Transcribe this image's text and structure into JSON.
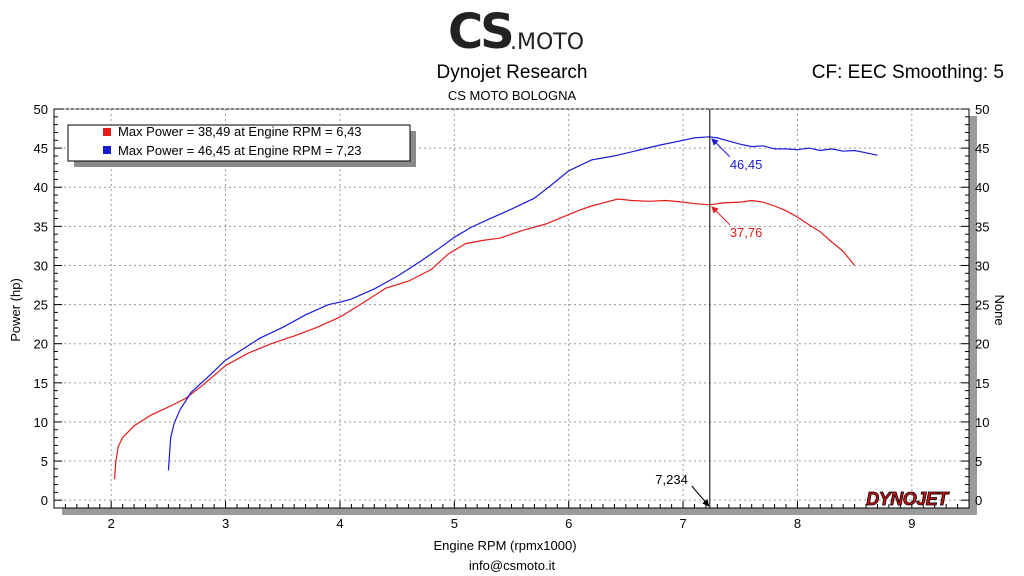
{
  "header": {
    "logo_cs": "CS",
    "logo_moto": ".MOTO",
    "title": "Dynojet Research",
    "subtitle": "CS MOTO BOLOGNA",
    "correction": "CF: EEC Smoothing: 5"
  },
  "footer": {
    "email": "info@csmoto.it"
  },
  "brand": {
    "dynojet_text": "DYNOJET"
  },
  "colors": {
    "red": "#e31b1b",
    "blue": "#1b1bd6",
    "grid": "#9a9a9a"
  },
  "chart_data": {
    "type": "line",
    "xlabel": "Engine RPM (rpmx1000)",
    "ylabel": "Power (hp)",
    "y2label": "None",
    "xlim": [
      1.5,
      9.5
    ],
    "ylim": [
      -1,
      50
    ],
    "x_ticks": [
      "2",
      "3",
      "4",
      "5",
      "6",
      "7",
      "8",
      "9"
    ],
    "y_ticks": [
      "0",
      "5",
      "10",
      "15",
      "20",
      "25",
      "30",
      "35",
      "40",
      "45",
      "50"
    ],
    "grid": true,
    "legend": {
      "position": "top-left",
      "entries": [
        "Max Power = 38,49 at Engine RPM = 6,43",
        "Max Power = 46,45 at Engine RPM = 7,23"
      ]
    },
    "cursor": {
      "x": 7.234,
      "label": "7,234"
    },
    "annotations": [
      {
        "series": "red",
        "value": "37,76",
        "x": 7.234,
        "y": 37.76
      },
      {
        "series": "blue",
        "value": "46,45",
        "x": 7.234,
        "y": 46.45
      }
    ],
    "series": [
      {
        "color": "red",
        "x": [
          2.03,
          2.04,
          2.06,
          2.1,
          2.2,
          2.35,
          2.5,
          2.65,
          2.8,
          3.0,
          3.2,
          3.4,
          3.6,
          3.8,
          4.0,
          4.2,
          4.4,
          4.6,
          4.8,
          4.95,
          5.1,
          5.25,
          5.4,
          5.6,
          5.8,
          6.0,
          6.1,
          6.2,
          6.3,
          6.43,
          6.55,
          6.7,
          6.85,
          7.0,
          7.1,
          7.234,
          7.35,
          7.5,
          7.6,
          7.7,
          7.8,
          7.9,
          8.0,
          8.1,
          8.2,
          8.3,
          8.4,
          8.5
        ],
        "y": [
          2.7,
          4.9,
          6.8,
          8.0,
          9.5,
          10.9,
          11.9,
          13.0,
          14.7,
          17.2,
          18.8,
          20.0,
          21.0,
          22.1,
          23.4,
          25.2,
          27.1,
          28.0,
          29.5,
          31.5,
          32.8,
          33.2,
          33.5,
          34.5,
          35.3,
          36.5,
          37.1,
          37.6,
          38.0,
          38.49,
          38.3,
          38.2,
          38.3,
          38.1,
          37.9,
          37.76,
          38.0,
          38.1,
          38.3,
          38.1,
          37.6,
          37.0,
          36.2,
          35.2,
          34.3,
          33.0,
          31.8,
          30.0
        ]
      },
      {
        "color": "blue",
        "x": [
          2.5,
          2.52,
          2.55,
          2.6,
          2.7,
          2.85,
          3.0,
          3.15,
          3.3,
          3.5,
          3.7,
          3.9,
          4.0,
          4.1,
          4.3,
          4.5,
          4.7,
          4.85,
          5.0,
          5.15,
          5.3,
          5.5,
          5.7,
          5.85,
          6.0,
          6.2,
          6.4,
          6.6,
          6.8,
          7.0,
          7.1,
          7.23,
          7.3,
          7.4,
          7.5,
          7.6,
          7.7,
          7.8,
          7.9,
          8.0,
          8.1,
          8.2,
          8.3,
          8.4,
          8.5,
          8.6,
          8.7
        ],
        "y": [
          3.8,
          8.0,
          9.8,
          11.5,
          13.8,
          15.8,
          17.9,
          19.3,
          20.7,
          22.1,
          23.7,
          25.0,
          25.3,
          25.7,
          27.0,
          28.6,
          30.5,
          32.0,
          33.6,
          34.9,
          35.9,
          37.2,
          38.6,
          40.3,
          42.1,
          43.5,
          44.0,
          44.7,
          45.4,
          46.0,
          46.3,
          46.45,
          46.3,
          45.9,
          45.5,
          45.2,
          45.3,
          44.9,
          44.9,
          44.8,
          45.0,
          44.7,
          44.9,
          44.6,
          44.7,
          44.4,
          44.1
        ]
      }
    ]
  }
}
